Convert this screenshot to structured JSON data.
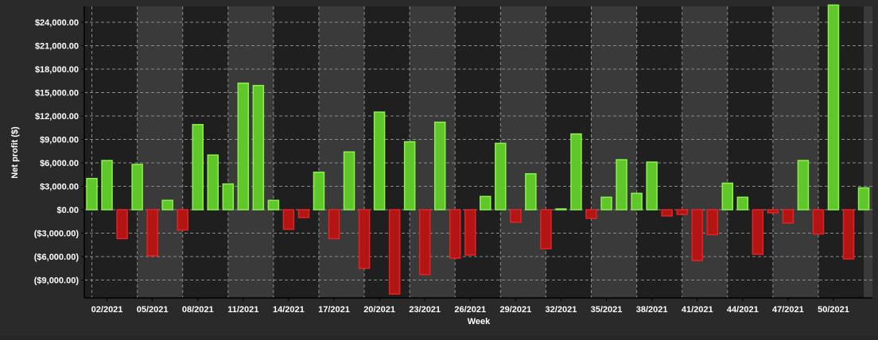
{
  "chart_data": {
    "type": "bar",
    "xlabel": "Week",
    "ylabel": "Net profit ($)",
    "ylim": [
      -11000,
      26000
    ],
    "y_ticks": [
      24000,
      21000,
      18000,
      15000,
      12000,
      9000,
      6000,
      3000,
      0,
      -3000,
      -6000,
      -9000
    ],
    "y_tick_labels": [
      "$24,000.00",
      "$21,000.00",
      "$18,000.00",
      "$15,000.00",
      "$12,000.00",
      "$9,000.00",
      "$6,000.00",
      "$3,000.00",
      "$0.00",
      "($3,000.00)",
      "($6,000.00)",
      "($9,000.00)"
    ],
    "x_tick_labels": [
      "02/2021",
      "05/2021",
      "08/2021",
      "11/2021",
      "14/2021",
      "17/2021",
      "20/2021",
      "23/2021",
      "26/2021",
      "29/2021",
      "32/2021",
      "35/2021",
      "38/2021",
      "41/2021",
      "44/2021",
      "47/2021",
      "50/2021"
    ],
    "grid": true,
    "colors": {
      "positive": "#5fc72a",
      "positive_edge": "#8df04e",
      "negative": "#b31515",
      "negative_edge": "#e52222",
      "band_light": "#3a3a3a",
      "band_dark": "#1f1f1f"
    },
    "categories": [
      "01/2021",
      "02/2021",
      "03/2021",
      "04/2021",
      "05/2021",
      "06/2021",
      "07/2021",
      "08/2021",
      "09/2021",
      "10/2021",
      "11/2021",
      "12/2021",
      "13/2021",
      "14/2021",
      "15/2021",
      "16/2021",
      "17/2021",
      "18/2021",
      "19/2021",
      "20/2021",
      "21/2021",
      "22/2021",
      "23/2021",
      "24/2021",
      "25/2021",
      "26/2021",
      "27/2021",
      "28/2021",
      "29/2021",
      "30/2021",
      "31/2021",
      "32/2021",
      "33/2021",
      "34/2021",
      "35/2021",
      "36/2021",
      "37/2021",
      "38/2021",
      "39/2021",
      "40/2021",
      "41/2021",
      "42/2021",
      "43/2021",
      "44/2021",
      "45/2021",
      "46/2021",
      "47/2021",
      "48/2021",
      "49/2021",
      "50/2021",
      "51/2021",
      "52/2021"
    ],
    "values": [
      4000,
      6300,
      -3700,
      5800,
      -5900,
      1200,
      -2600,
      10900,
      7000,
      3300,
      16200,
      15900,
      1200,
      -2500,
      -1000,
      4800,
      -3700,
      7400,
      -7500,
      12500,
      -10800,
      8700,
      -8300,
      11200,
      -6200,
      -5800,
      1700,
      8500,
      -1600,
      4600,
      -5000,
      100,
      9700,
      -1100,
      1600,
      6400,
      2100,
      6100,
      -800,
      -600,
      -6500,
      -3200,
      3400,
      1600,
      -5700,
      -400,
      -1700,
      6300,
      -3100,
      26200,
      -6300,
      2800
    ]
  }
}
